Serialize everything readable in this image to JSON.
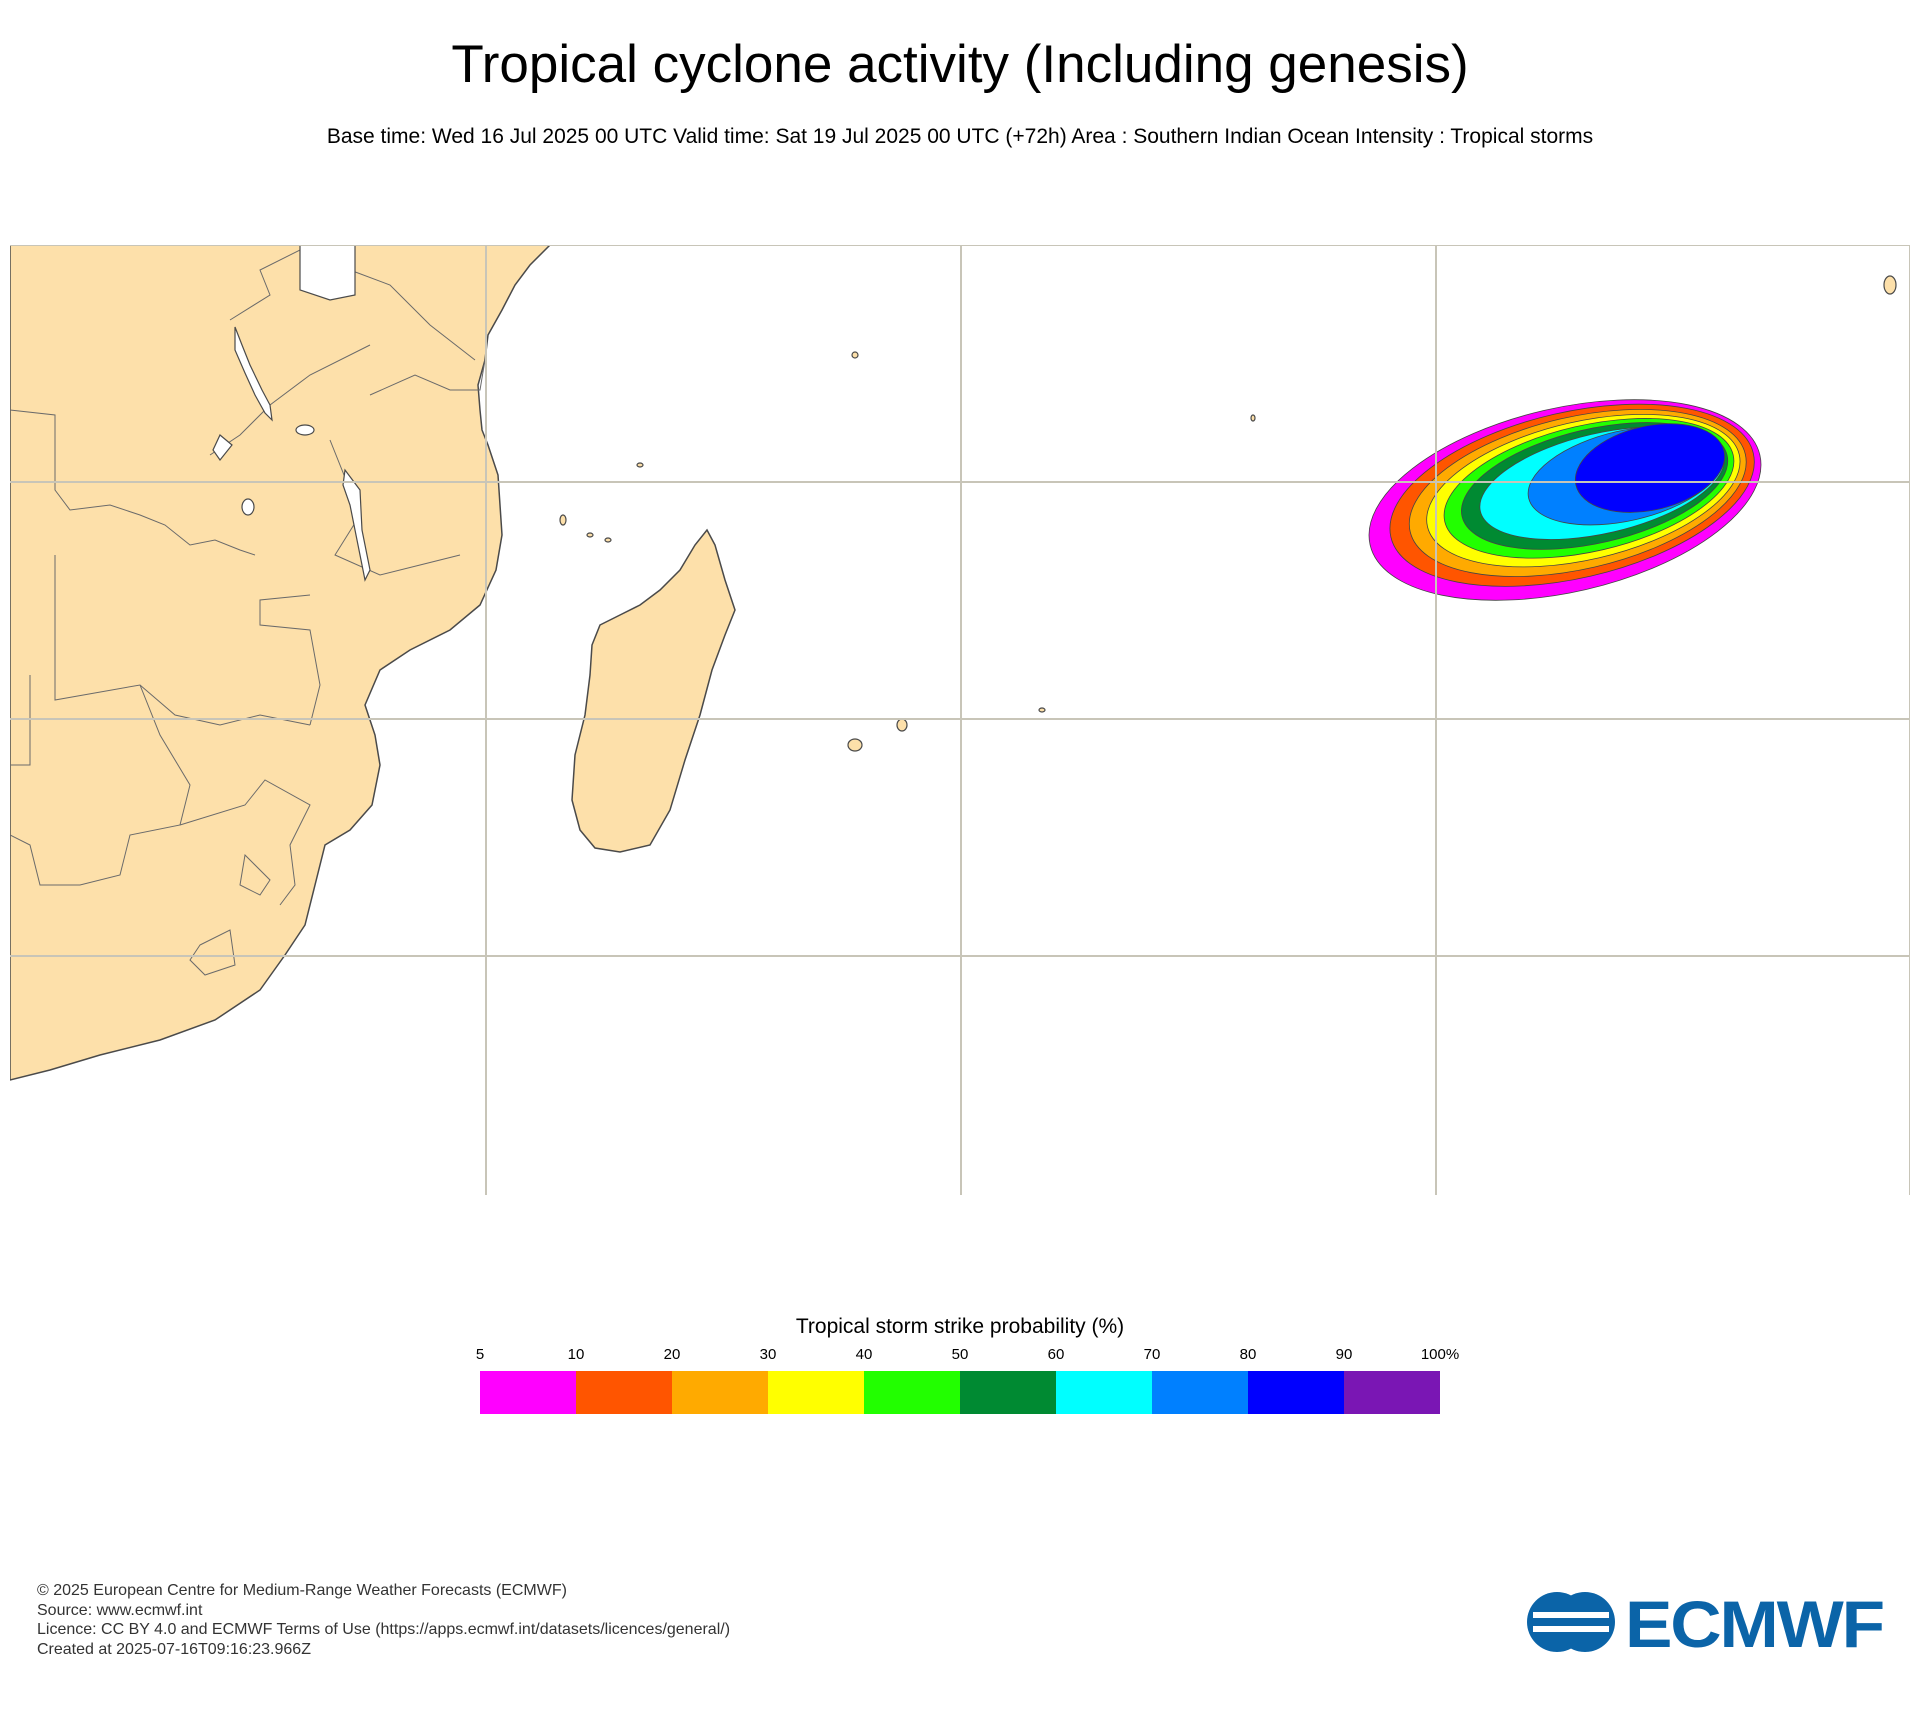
{
  "header": {
    "title": "Tropical cyclone activity (Including genesis)",
    "subtitle": "Base time: Wed 16 Jul 2025 00 UTC Valid time: Sat 19 Jul 2025 00 UTC (+72h) Area : Southern Indian Ocean Intensity : Tropical storms"
  },
  "map": {
    "land_color": "#fde0aa",
    "grid_color": "#c8c5b8",
    "coast_color": "#4a4a4a"
  },
  "legend": {
    "title": "Tropical storm strike probability (%)",
    "ticks": [
      "5",
      "10",
      "20",
      "30",
      "40",
      "50",
      "60",
      "70",
      "80",
      "90",
      "100%"
    ],
    "colors": [
      "#ff00ff",
      "#ff5500",
      "#ffaa00",
      "#ffff00",
      "#22ff00",
      "#008a32",
      "#00ffff",
      "#0080ff",
      "#0000ff",
      "#7a16b4"
    ]
  },
  "footer": {
    "copyright": "© 2025 European Centre for Medium-Range Weather Forecasts (ECMWF)",
    "source": "Source: www.ecmwf.int",
    "licence": "Licence: CC BY 4.0 and ECMWF Terms of Use (https://apps.ecmwf.int/datasets/licences/general/)",
    "created": "Created at 2025-07-16T09:16:23.966Z"
  },
  "logo": {
    "text": "ECMWF",
    "color": "#0b64a8"
  }
}
